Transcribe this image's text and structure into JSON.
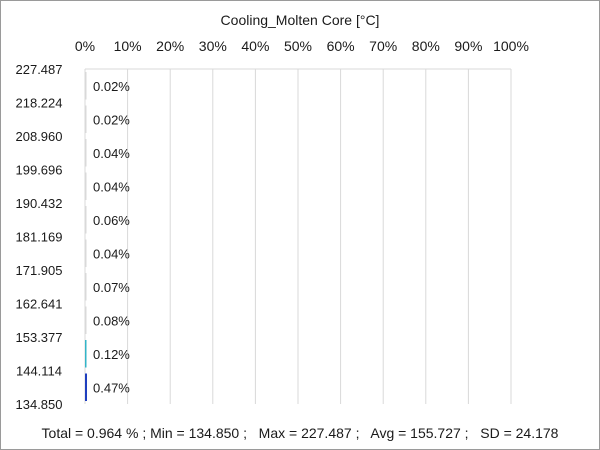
{
  "chart_data": {
    "type": "bar",
    "orientation": "horizontal",
    "title": "Cooling_Molten Core [°C]",
    "xlabel": "",
    "ylabel": "",
    "x_ticks": [
      "0%",
      "10%",
      "20%",
      "30%",
      "40%",
      "50%",
      "60%",
      "70%",
      "80%",
      "90%",
      "100%"
    ],
    "xlim": [
      0,
      100
    ],
    "y_boundaries": [
      "227.487",
      "218.224",
      "208.960",
      "199.696",
      "190.432",
      "181.169",
      "171.905",
      "162.641",
      "153.377",
      "144.114",
      "134.850"
    ],
    "bins": [
      {
        "lower": 218.224,
        "upper": 227.487,
        "value": 0.02,
        "label": "0.02%"
      },
      {
        "lower": 208.96,
        "upper": 218.224,
        "value": 0.02,
        "label": "0.02%"
      },
      {
        "lower": 199.696,
        "upper": 208.96,
        "value": 0.04,
        "label": "0.04%"
      },
      {
        "lower": 190.432,
        "upper": 199.696,
        "value": 0.04,
        "label": "0.04%"
      },
      {
        "lower": 181.169,
        "upper": 190.432,
        "value": 0.06,
        "label": "0.06%"
      },
      {
        "lower": 171.905,
        "upper": 181.169,
        "value": 0.04,
        "label": "0.04%"
      },
      {
        "lower": 162.641,
        "upper": 171.905,
        "value": 0.07,
        "label": "0.07%"
      },
      {
        "lower": 153.377,
        "upper": 162.641,
        "value": 0.08,
        "label": "0.08%"
      },
      {
        "lower": 144.114,
        "upper": 153.377,
        "value": 0.12,
        "label": "0.12%"
      },
      {
        "lower": 134.85,
        "upper": 144.114,
        "value": 0.47,
        "label": "0.47%"
      }
    ],
    "grid": true,
    "colors": {
      "bar_low": "#1f3fbf",
      "bar_mid": "#33b5c8",
      "grid": "#d9d9d9",
      "frame": "#9a9a9a"
    },
    "footer": "Total = 0.964 % ; Min = 134.850 ;   Max = 227.487 ;   Avg = 155.727 ;   SD = 24.178"
  }
}
